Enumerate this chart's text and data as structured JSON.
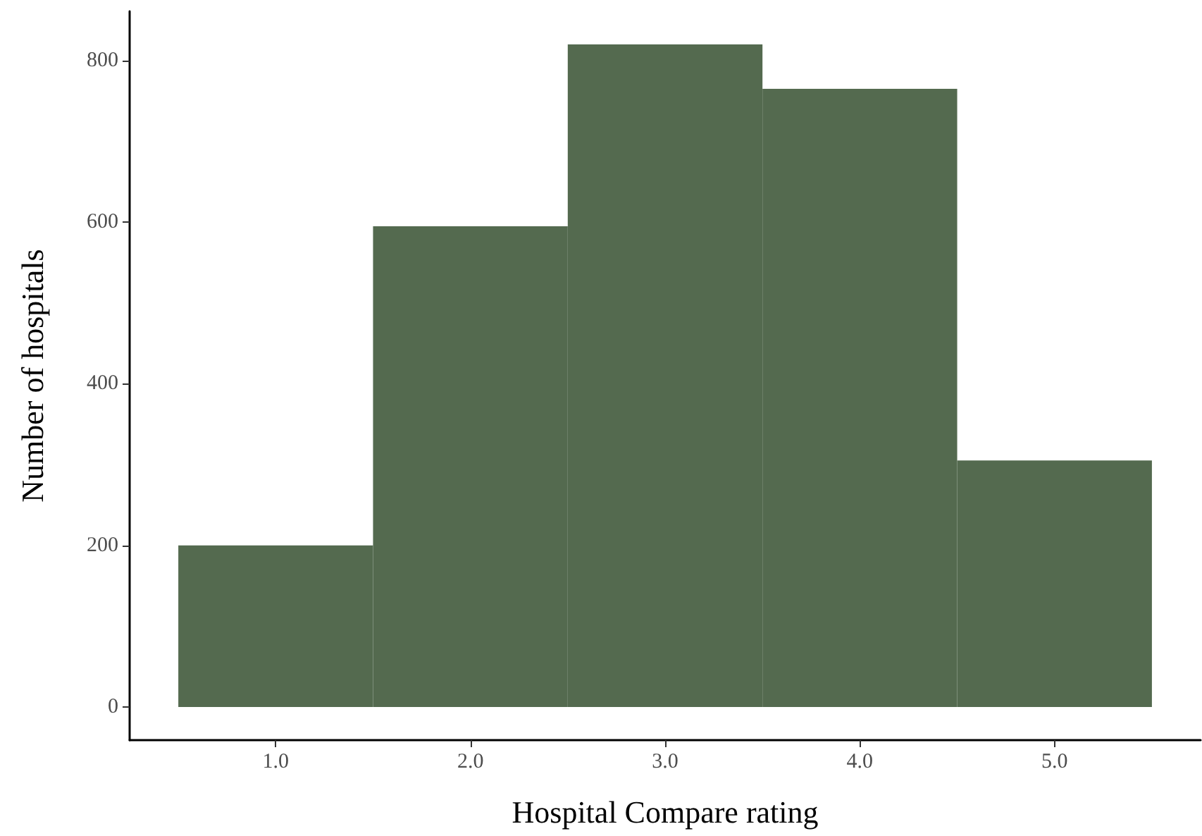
{
  "chart_data": {
    "type": "histogram",
    "xlabel": "Hospital Compare rating",
    "ylabel": "Number of hospitals",
    "bins": [
      0.5,
      1.5,
      2.5,
      3.5,
      4.5,
      5.5
    ],
    "values": [
      200,
      595,
      820,
      765,
      305
    ],
    "color": "#546a4f",
    "xlim": [
      0.25,
      5.75
    ],
    "xticks": [
      {
        "value": 1,
        "label": "1.0"
      },
      {
        "value": 2,
        "label": "2.0"
      },
      {
        "value": 3,
        "label": "3.0"
      },
      {
        "value": 4,
        "label": "4.0"
      },
      {
        "value": 5,
        "label": "5.0"
      }
    ],
    "ylim": [
      -41,
      861
    ],
    "yticks": [
      0,
      200,
      400,
      600,
      800
    ],
    "grid": false
  }
}
